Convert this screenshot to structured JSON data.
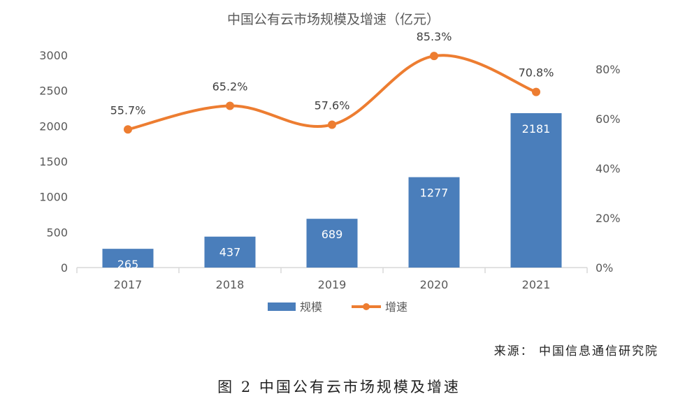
{
  "chart_data": {
    "type": "bar+line",
    "title": "中国公有云市场规模及增速（亿元）",
    "categories": [
      "2017",
      "2018",
      "2019",
      "2020",
      "2021"
    ],
    "series": [
      {
        "name": "规模",
        "type": "bar",
        "axis": "left",
        "color": "#4a7ebb",
        "values": [
          265,
          437,
          689,
          1277,
          2181
        ],
        "labels": [
          "265",
          "437",
          "689",
          "1277",
          "2181"
        ]
      },
      {
        "name": "增速",
        "type": "line",
        "axis": "right",
        "color": "#ed7d31",
        "values": [
          55.7,
          65.2,
          57.6,
          85.3,
          70.8
        ],
        "labels": [
          "55.7%",
          "65.2%",
          "57.6%",
          "85.3%",
          "70.8%"
        ]
      }
    ],
    "y_left": {
      "ticks": [
        "0",
        "500",
        "1000",
        "1500",
        "2000",
        "2500",
        "3000"
      ],
      "range": [
        0,
        3000
      ]
    },
    "y_right": {
      "ticks": [
        "0%",
        "20%",
        "40%",
        "60%",
        "80%"
      ],
      "range": [
        0,
        85
      ]
    },
    "legend": {
      "position": "bottom",
      "entries": [
        "规模",
        "增速"
      ]
    },
    "grid": false
  },
  "source": "来源：  中国信息通信研究院",
  "caption": "图 2  中国公有云市场规模及增速"
}
